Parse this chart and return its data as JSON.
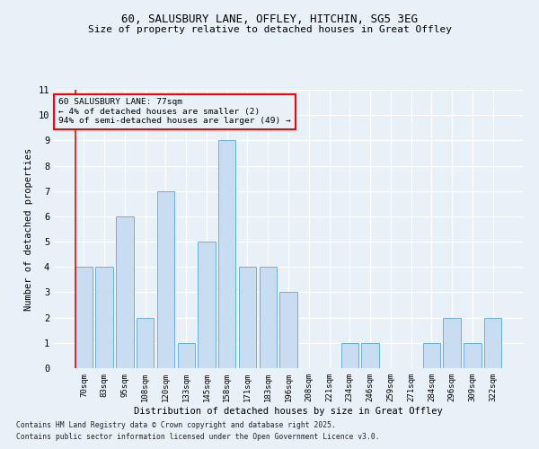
{
  "title1": "60, SALUSBURY LANE, OFFLEY, HITCHIN, SG5 3EG",
  "title2": "Size of property relative to detached houses in Great Offley",
  "xlabel": "Distribution of detached houses by size in Great Offley",
  "ylabel": "Number of detached properties",
  "categories": [
    "70sqm",
    "83sqm",
    "95sqm",
    "108sqm",
    "120sqm",
    "133sqm",
    "145sqm",
    "158sqm",
    "171sqm",
    "183sqm",
    "196sqm",
    "208sqm",
    "221sqm",
    "234sqm",
    "246sqm",
    "259sqm",
    "271sqm",
    "284sqm",
    "296sqm",
    "309sqm",
    "322sqm"
  ],
  "values": [
    4,
    4,
    6,
    2,
    7,
    1,
    5,
    9,
    4,
    4,
    3,
    0,
    0,
    1,
    1,
    0,
    0,
    1,
    2,
    1,
    2
  ],
  "bar_color": "#c9ddf2",
  "bar_edge_color": "#6aaee8",
  "ylim": [
    0,
    11
  ],
  "yticks": [
    0,
    1,
    2,
    3,
    4,
    5,
    6,
    7,
    8,
    9,
    10,
    11
  ],
  "annotation_text": "60 SALUSBURY LANE: 77sqm\n← 4% of detached houses are smaller (2)\n94% of semi-detached houses are larger (49) →",
  "footer1": "Contains HM Land Registry data © Crown copyright and database right 2025.",
  "footer2": "Contains public sector information licensed under the Open Government Licence v3.0.",
  "bg_color": "#e8f0f8",
  "grid_color": "#ffffff"
}
